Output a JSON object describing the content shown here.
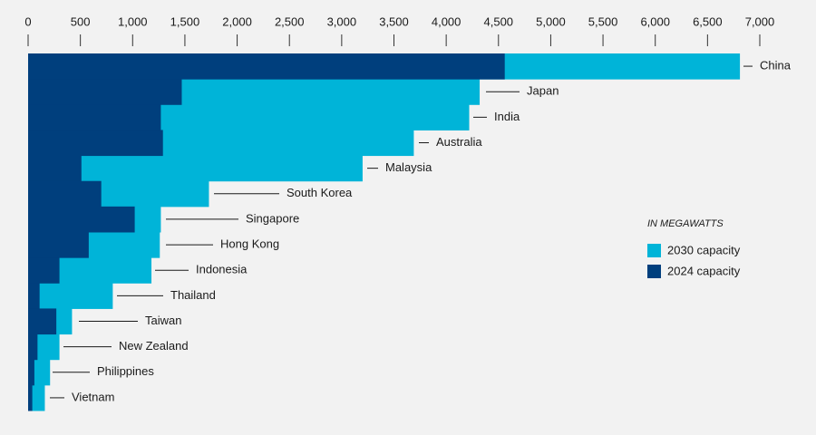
{
  "chart_data": {
    "type": "bar",
    "orientation": "horizontal",
    "overlap": true,
    "subtitle": "IN MEGAWATTS",
    "categories": [
      "China",
      "Japan",
      "India",
      "Australia",
      "Malaysia",
      "South Korea",
      "Singapore",
      "Hong Kong",
      "Indonesia",
      "Thailand",
      "Taiwan",
      "New Zealand",
      "Philippines",
      "Vietnam"
    ],
    "series": [
      {
        "name": "2030 capacity",
        "color": "#00b4d8",
        "values": [
          6810,
          4320,
          4220,
          3690,
          3200,
          1730,
          1270,
          1260,
          1180,
          810,
          420,
          300,
          210,
          160
        ]
      },
      {
        "name": "2024 capacity",
        "color": "#003f7d",
        "values": [
          4560,
          1470,
          1270,
          1290,
          510,
          700,
          1020,
          580,
          300,
          110,
          270,
          90,
          60,
          40
        ]
      }
    ],
    "xlim": [
      0,
      7000
    ],
    "xticks": [
      0,
      500,
      {
        "value": 1000,
        "label": "1,000"
      },
      {
        "value": 1500,
        "label": "1,500"
      },
      {
        "value": 2000,
        "label": "2,000"
      },
      {
        "value": 2500,
        "label": "2,500"
      },
      {
        "value": 3000,
        "label": "3,000"
      },
      {
        "value": 3500,
        "label": "3,500"
      },
      {
        "value": 4000,
        "label": "4,000"
      },
      {
        "value": 4500,
        "label": "4,500"
      },
      {
        "value": 5000,
        "label": "5,000"
      },
      {
        "value": 5500,
        "label": "5,500"
      },
      {
        "value": 6000,
        "label": "6,000"
      },
      {
        "value": 6500,
        "label": "6,500"
      },
      {
        "value": 7000,
        "label": "7,000"
      }
    ]
  }
}
